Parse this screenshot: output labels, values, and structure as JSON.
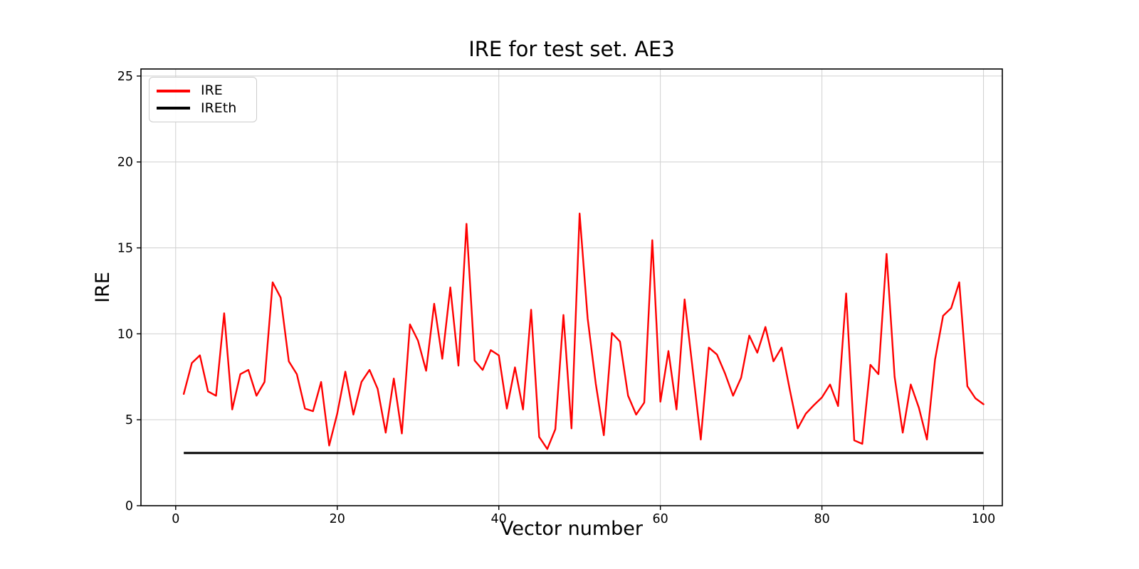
{
  "title": "IRE for test set. AE3",
  "axes": {
    "xlabel": "Vector number",
    "ylabel": "IRE"
  },
  "legend": {
    "items": [
      {
        "label": "IRE",
        "color": "#ff0000"
      },
      {
        "label": "IREth",
        "color": "#000000"
      }
    ],
    "position": "upper left"
  },
  "colors": {
    "ire_line": "#ff0000",
    "threshold_line": "#000000",
    "grid": "#d0d0d0",
    "spine": "#000000",
    "background": "#ffffff"
  },
  "chart_data": {
    "type": "line",
    "title": "IRE for test set. AE3",
    "xlabel": "Vector number",
    "ylabel": "IRE",
    "grid": true,
    "legend_position": "upper left",
    "xlim": [
      -4.3,
      102.33
    ],
    "ylim": [
      0,
      25.41
    ],
    "xticks": [
      0,
      20,
      40,
      60,
      80,
      100
    ],
    "yticks": [
      0,
      5,
      10,
      15,
      20,
      25
    ],
    "x": [
      1,
      2,
      3,
      4,
      5,
      6,
      7,
      8,
      9,
      10,
      11,
      12,
      13,
      14,
      15,
      16,
      17,
      18,
      19,
      20,
      21,
      22,
      23,
      24,
      25,
      26,
      27,
      28,
      29,
      30,
      31,
      32,
      33,
      34,
      35,
      36,
      37,
      38,
      39,
      40,
      41,
      42,
      43,
      44,
      45,
      46,
      47,
      48,
      49,
      50,
      51,
      52,
      53,
      54,
      55,
      56,
      57,
      58,
      59,
      60,
      61,
      62,
      63,
      64,
      65,
      66,
      67,
      68,
      69,
      70,
      71,
      72,
      73,
      74,
      75,
      76,
      77,
      78,
      79,
      80,
      81,
      82,
      83,
      84,
      85,
      86,
      87,
      88,
      89,
      90,
      91,
      92,
      93,
      94,
      95,
      96,
      97,
      98,
      99,
      100
    ],
    "series": [
      {
        "name": "IRE",
        "color": "#ff0000",
        "line_width": 2.4,
        "values": [
          6.5,
          8.3,
          8.75,
          6.65,
          6.4,
          11.2,
          5.6,
          7.65,
          7.9,
          6.4,
          7.2,
          13.0,
          12.1,
          8.4,
          7.65,
          5.65,
          5.5,
          7.2,
          3.5,
          5.35,
          7.8,
          5.3,
          7.2,
          7.9,
          6.8,
          4.25,
          7.4,
          4.2,
          10.55,
          9.6,
          7.85,
          11.75,
          8.55,
          12.7,
          8.15,
          16.4,
          8.45,
          7.9,
          9.05,
          8.75,
          5.65,
          8.05,
          5.6,
          11.4,
          4.0,
          3.3,
          4.45,
          11.1,
          4.5,
          17.0,
          10.9,
          7.1,
          4.1,
          10.05,
          9.55,
          6.4,
          5.3,
          6.0,
          15.45,
          6.05,
          9.0,
          5.6,
          12.0,
          7.95,
          3.85,
          9.2,
          8.8,
          7.7,
          6.4,
          7.45,
          9.9,
          8.9,
          10.4,
          8.4,
          9.2,
          6.8,
          4.5,
          5.35,
          5.85,
          6.3,
          7.05,
          5.8,
          12.35,
          3.8,
          3.6,
          8.2,
          7.65,
          14.65,
          7.5,
          4.25,
          7.05,
          5.7,
          3.85,
          8.5,
          11.05,
          11.5,
          13.0,
          6.95,
          6.25,
          5.9
        ]
      },
      {
        "name": "IREth",
        "color": "#000000",
        "line_width": 3,
        "type": "threshold",
        "value": 3.07,
        "x_range": [
          1,
          100
        ]
      }
    ]
  }
}
